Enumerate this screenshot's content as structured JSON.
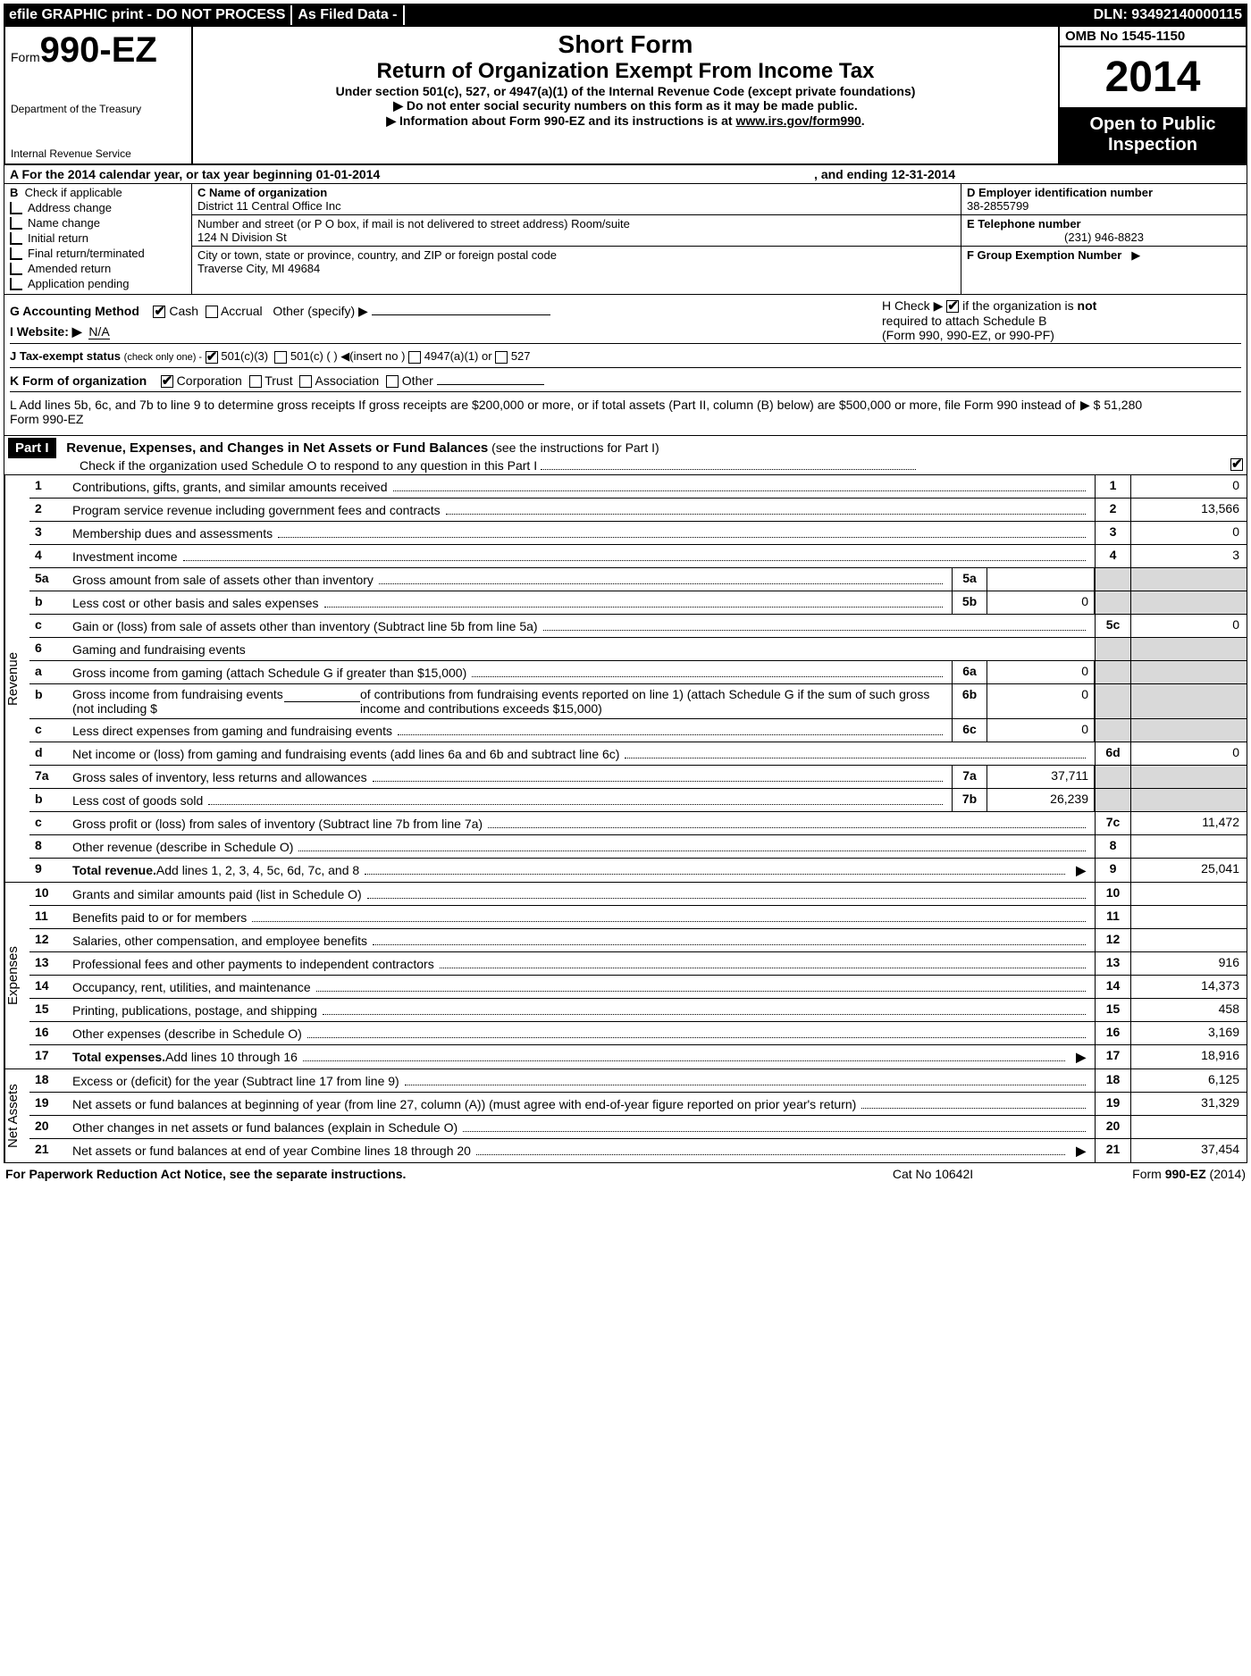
{
  "topbar": {
    "efile": "efile GRAPHIC print - DO NOT PROCESS",
    "asfiled": "As Filed Data -",
    "dln": "DLN: 93492140000115"
  },
  "header": {
    "form_prefix": "Form",
    "form_number": "990-EZ",
    "dept1": "Department of the Treasury",
    "dept2": "Internal Revenue Service",
    "short_form": "Short Form",
    "main_title": "Return of Organization Exempt From Income Tax",
    "sub1": "Under section 501(c), 527, or 4947(a)(1) of the Internal Revenue Code (except private foundations)",
    "sub2": "▶ Do not enter social security numbers on this form as it may be made public.",
    "sub3_pre": "▶ Information about Form 990-EZ and its instructions is at ",
    "sub3_link": "www.irs.gov/form990",
    "sub3_post": ".",
    "omb": "OMB No 1545-1150",
    "year": "2014",
    "open": "Open to Public Inspection"
  },
  "rowA": {
    "left": "A  For the 2014 calendar year, or tax year beginning 01-01-2014",
    "right": ", and ending 12-31-2014"
  },
  "colB": {
    "title": "B",
    "check_if": "Check if applicable",
    "items": [
      "Address change",
      "Name change",
      "Initial return",
      "Final return/terminated",
      "Amended return",
      "Application pending"
    ]
  },
  "colC": {
    "name_lbl": "C Name of organization",
    "name": "District 11 Central Office Inc",
    "street_lbl": "Number and street (or P O box, if mail is not delivered to street address) Room/suite",
    "street": "124 N Division St",
    "city_lbl": "City or town, state or province, country, and ZIP or foreign postal code",
    "city": "Traverse City, MI  49684"
  },
  "colD": {
    "d_lbl": "D Employer identification number",
    "d_val": "38-2855799",
    "e_lbl": "E Telephone number",
    "e_val": "(231) 946-8823",
    "f_lbl": "F Group Exemption Number",
    "f_arrow": "▶"
  },
  "ghi": {
    "g_pre": "G Accounting Method",
    "g_cash": "Cash",
    "g_accrual": "Accrual",
    "g_other": "Other (specify) ▶",
    "i_pre": "I Website: ▶",
    "i_val": "N/A",
    "j_pre": "J Tax-exempt status",
    "j_note": "(check only one) -",
    "j_501c3": "501(c)(3)",
    "j_501c": "501(c) (   ) ◀(insert no )",
    "j_4947": "4947(a)(1) or",
    "j_527": "527",
    "k_pre": "K Form of organization",
    "k_corp": "Corporation",
    "k_trust": "Trust",
    "k_assoc": "Association",
    "k_other": "Other",
    "h_text1": "H  Check ▶",
    "h_text2": "if the organization is",
    "h_not": "not",
    "h_text3": "required to attach Schedule B",
    "h_text4": "(Form 990, 990-EZ, or 990-PF)",
    "l_text": "L Add lines 5b, 6c, and 7b to line 9 to determine gross receipts  If gross receipts are $200,000 or more, or if total assets (Part II, column (B) below) are $500,000 or more, file Form 990 instead of Form 990-EZ",
    "l_val": "▶ $ 51,280"
  },
  "part1": {
    "label": "Part I",
    "title": "Revenue, Expenses, and Changes in Net Assets or Fund Balances",
    "title_note": "(see the instructions for Part I)",
    "check_line": "Check if the organization used Schedule O to respond to any question in this Part I"
  },
  "revenue": {
    "label": "Revenue",
    "lines": {
      "l1": {
        "n": "1",
        "d": "Contributions, gifts, grants, and similar amounts received",
        "rn": "1",
        "rv": "0"
      },
      "l2": {
        "n": "2",
        "d": "Program service revenue including government fees and contracts",
        "rn": "2",
        "rv": "13,566"
      },
      "l3": {
        "n": "3",
        "d": "Membership dues and assessments",
        "rn": "3",
        "rv": "0"
      },
      "l4": {
        "n": "4",
        "d": "Investment income",
        "rn": "4",
        "rv": "3"
      },
      "l5a": {
        "n": "5a",
        "d": "Gross amount from sale of assets other than inventory",
        "sb": "5a",
        "sv": ""
      },
      "l5b": {
        "n": "b",
        "d": "Less  cost or other basis and sales expenses",
        "sb": "5b",
        "sv": "0"
      },
      "l5c": {
        "n": "c",
        "d": "Gain or (loss) from sale of assets other than inventory (Subtract line 5b from line 5a)",
        "rn": "5c",
        "rv": "0"
      },
      "l6": {
        "n": "6",
        "d": "Gaming and fundraising events"
      },
      "l6a": {
        "n": "a",
        "d": "Gross income from gaming (attach Schedule G if greater than $15,000)",
        "sb": "6a",
        "sv": "0"
      },
      "l6b": {
        "n": "b",
        "d1": "Gross income from fundraising events (not including $",
        "d2": "of contributions from fundraising events reported on line 1) (attach Schedule G if the sum of such gross income and contributions exceeds $15,000)",
        "sb": "6b",
        "sv": "0"
      },
      "l6c": {
        "n": "c",
        "d": "Less  direct expenses from gaming and fundraising events",
        "sb": "6c",
        "sv": "0"
      },
      "l6d": {
        "n": "d",
        "d": "Net income or (loss) from gaming and fundraising events (add lines 6a and 6b and subtract line 6c)",
        "rn": "6d",
        "rv": "0"
      },
      "l7a": {
        "n": "7a",
        "d": "Gross sales of inventory, less returns and allowances",
        "sb": "7a",
        "sv": "37,711"
      },
      "l7b": {
        "n": "b",
        "d": "Less  cost of goods sold",
        "sb": "7b",
        "sv": "26,239"
      },
      "l7c": {
        "n": "c",
        "d": "Gross profit or (loss) from sales of inventory (Subtract line 7b from line 7a)",
        "rn": "7c",
        "rv": "11,472"
      },
      "l8": {
        "n": "8",
        "d": "Other revenue (describe in Schedule O)",
        "rn": "8",
        "rv": ""
      },
      "l9": {
        "n": "9",
        "d": "Total revenue. Add lines 1, 2, 3, 4, 5c, 6d, 7c, and 8",
        "rn": "9",
        "rv": "25,041",
        "bold": true,
        "arrow": true
      }
    }
  },
  "expenses": {
    "label": "Expenses",
    "lines": {
      "l10": {
        "n": "10",
        "d": "Grants and similar amounts paid (list in Schedule O)",
        "rn": "10",
        "rv": ""
      },
      "l11": {
        "n": "11",
        "d": "Benefits paid to or for members",
        "rn": "11",
        "rv": ""
      },
      "l12": {
        "n": "12",
        "d": "Salaries, other compensation, and employee benefits",
        "rn": "12",
        "rv": ""
      },
      "l13": {
        "n": "13",
        "d": "Professional fees and other payments to independent contractors",
        "rn": "13",
        "rv": "916"
      },
      "l14": {
        "n": "14",
        "d": "Occupancy, rent, utilities, and maintenance",
        "rn": "14",
        "rv": "14,373"
      },
      "l15": {
        "n": "15",
        "d": "Printing, publications, postage, and shipping",
        "rn": "15",
        "rv": "458"
      },
      "l16": {
        "n": "16",
        "d": "Other expenses (describe in Schedule O)",
        "rn": "16",
        "rv": "3,169"
      },
      "l17": {
        "n": "17",
        "d": "Total expenses. Add lines 10 through 16",
        "rn": "17",
        "rv": "18,916",
        "bold": true,
        "arrow": true
      }
    }
  },
  "netassets": {
    "label": "Net Assets",
    "lines": {
      "l18": {
        "n": "18",
        "d": "Excess or (deficit) for the year (Subtract line 17 from line 9)",
        "rn": "18",
        "rv": "6,125"
      },
      "l19": {
        "n": "19",
        "d": "Net assets or fund balances at beginning of year (from line 27, column (A)) (must agree with end-of-year figure reported on prior year's return)",
        "rn": "19",
        "rv": "31,329"
      },
      "l20": {
        "n": "20",
        "d": "Other changes in net assets or fund balances (explain in Schedule O)",
        "rn": "20",
        "rv": ""
      },
      "l21": {
        "n": "21",
        "d": "Net assets or fund balances at end of year Combine lines 18 through 20",
        "rn": "21",
        "rv": "37,454",
        "arrow": true
      }
    }
  },
  "footer": {
    "left": "For Paperwork Reduction Act Notice, see the separate instructions.",
    "center": "Cat No 10642I",
    "right_pre": "Form ",
    "right_form": "990-EZ",
    "right_year": " (2014)"
  }
}
